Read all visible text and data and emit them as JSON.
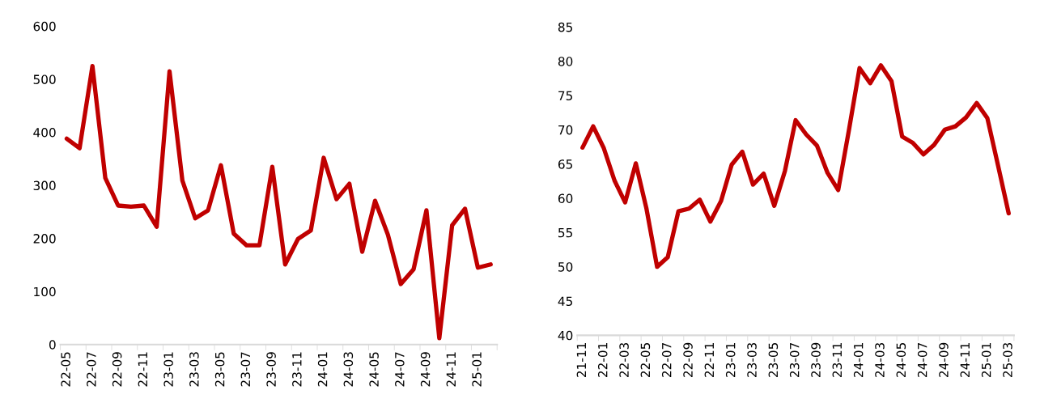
{
  "chart_data": [
    {
      "type": "line",
      "categories": [
        "22-05",
        null,
        "22-07",
        null,
        "22-09",
        null,
        "22-11",
        null,
        "23-01",
        null,
        "23-03",
        null,
        "23-05",
        null,
        "23-07",
        null,
        "23-09",
        null,
        "23-11",
        null,
        "24-01",
        null,
        "24-03",
        null,
        "24-05",
        null,
        "24-07",
        null,
        "24-09",
        null,
        "24-11",
        null,
        "25-01",
        null
      ],
      "series": [
        {
          "color": "#c00000",
          "values": [
            388,
            370,
            525,
            314,
            262,
            260,
            262,
            222,
            515,
            309,
            238,
            253,
            338,
            209,
            187,
            187,
            335,
            151,
            199,
            215,
            352,
            274,
            303,
            175,
            271,
            207,
            114,
            142,
            253,
            12,
            225,
            256,
            145,
            151
          ]
        }
      ],
      "ylim": [
        0,
        600
      ],
      "yticks": [
        0,
        100,
        200,
        300,
        400,
        500,
        600
      ],
      "grid": false,
      "legend": false,
      "marker": "none",
      "line_style": "solid"
    },
    {
      "type": "line",
      "categories": [
        "21-11",
        null,
        "22-01",
        null,
        "22-03",
        null,
        "22-05",
        null,
        "22-07",
        null,
        "22-09",
        null,
        "22-11",
        null,
        "23-01",
        null,
        "23-03",
        null,
        "23-05",
        null,
        "23-07",
        null,
        "23-09",
        null,
        "23-11",
        null,
        "24-01",
        null,
        "24-03",
        null,
        "24-05",
        null,
        "24-07",
        null,
        "24-09",
        null,
        "24-11",
        null,
        "25-01",
        null,
        "25-03"
      ],
      "series": [
        {
          "color": "#c00000",
          "values": [
            67.4,
            70.5,
            67.3,
            62.6,
            59.4,
            65.1,
            58.5,
            50.0,
            51.4,
            58.1,
            58.5,
            59.8,
            56.6,
            59.6,
            64.9,
            66.8,
            62.0,
            63.6,
            58.9,
            64.0,
            71.4,
            69.3,
            67.7,
            63.7,
            61.2,
            69.9,
            79.0,
            76.8,
            79.4,
            77.1,
            69.0,
            68.1,
            66.4,
            67.8,
            70.0,
            70.5,
            71.8,
            73.9,
            71.7,
            64.8,
            57.8
          ]
        }
      ],
      "ylim": [
        40,
        85
      ],
      "yticks": [
        40,
        45,
        50,
        55,
        60,
        65,
        70,
        75,
        80,
        85
      ],
      "grid": false,
      "legend": false,
      "marker": "none",
      "line_style": "solid"
    }
  ]
}
